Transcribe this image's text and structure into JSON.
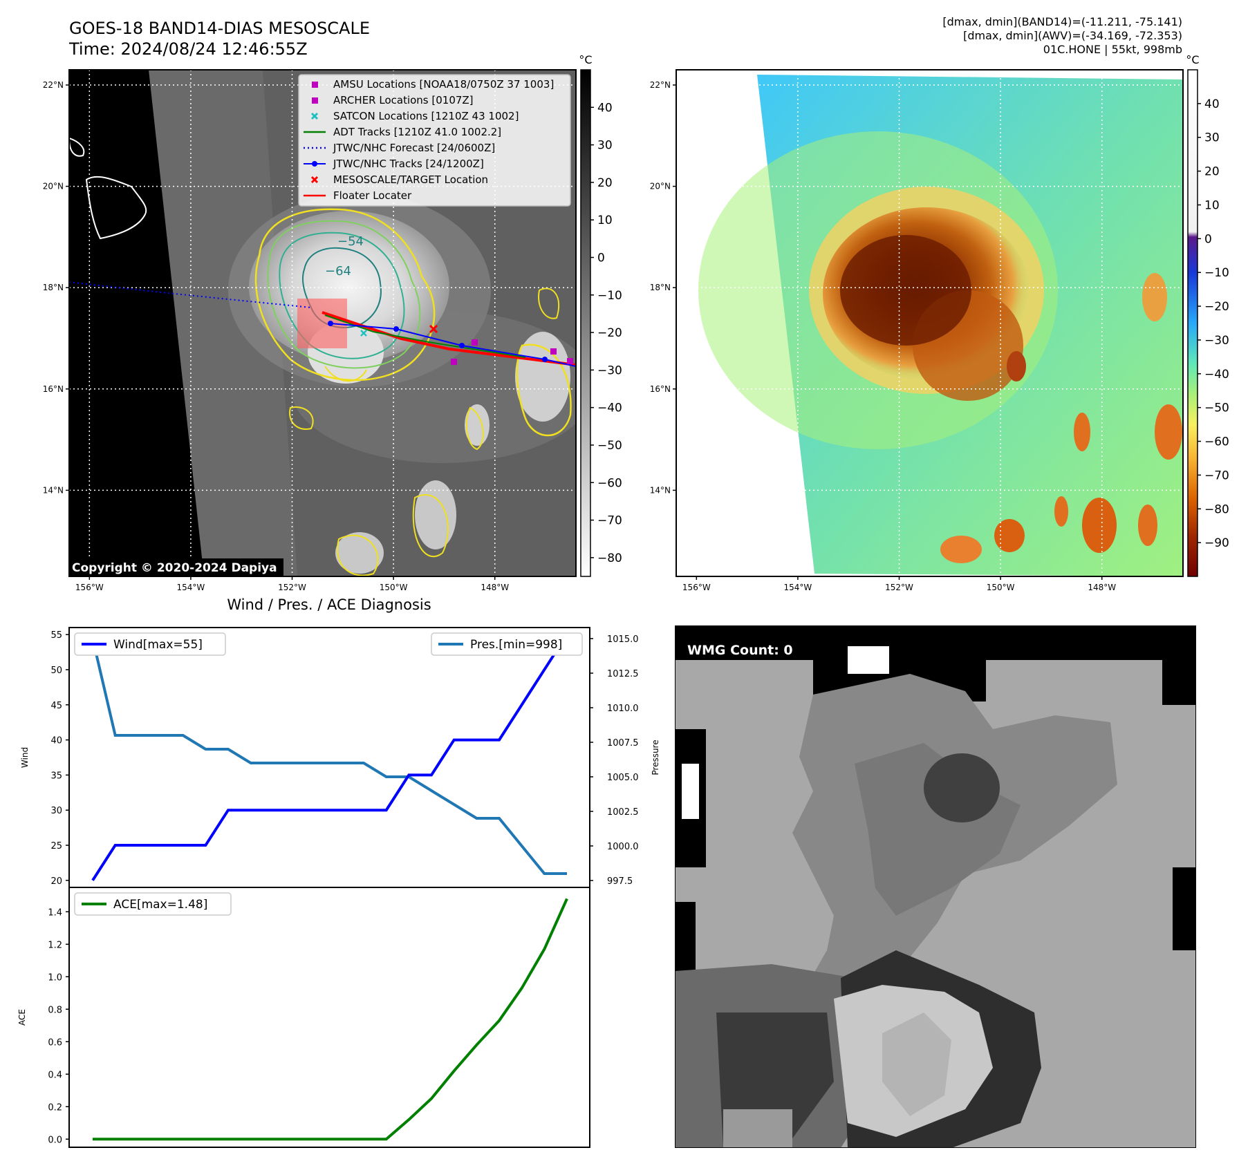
{
  "header": {
    "title_line1": "GOES-18 BAND14-DIAS MESOSCALE",
    "title_line2": "Time: 2024/08/24 12:46:55Z",
    "info_lines": [
      "[dmax, dmin](BAND14)=(-11.211, -75.141)",
      "[dmax, dmin](AWV)=(-34.169, -72.353)",
      "01C.HONE | 55kt, 998mb"
    ]
  },
  "maps": {
    "lat_labels": [
      "22°N",
      "20°N",
      "18°N",
      "16°N",
      "14°N"
    ],
    "lat_values": [
      22,
      20,
      18,
      16,
      14
    ],
    "lon_labels": [
      "156°W",
      "154°W",
      "152°W",
      "150°W",
      "148°W"
    ],
    "lon_values": [
      -156,
      -154,
      -152,
      -150,
      -148
    ],
    "lon_range": [
      -156.4,
      -146.4
    ],
    "lat_range": [
      12.3,
      22.3
    ],
    "copyright": "Copyright © 2020-2024 Dapiya",
    "contour_labels": [
      "−54",
      "−64"
    ]
  },
  "colorbar_gray": {
    "unit": "°C",
    "ticks": [
      "40",
      "30",
      "20",
      "10",
      "0",
      "−10",
      "−20",
      "−30",
      "−40",
      "−50",
      "−60",
      "−70",
      "−80"
    ],
    "range": [
      -85,
      50
    ]
  },
  "colorbar_color": {
    "unit": "°C",
    "ticks": [
      "40",
      "30",
      "20",
      "10",
      "0",
      "−10",
      "−20",
      "−30",
      "−40",
      "−50",
      "−60",
      "−70",
      "−80",
      "−90"
    ],
    "range": [
      -100,
      50
    ]
  },
  "legend": [
    {
      "label": "AMSU Locations [NOAA18/0750Z 37 1003]",
      "marker": "square",
      "color": "#c000c0"
    },
    {
      "label": "ARCHER Locations [0107Z]",
      "marker": "square",
      "color": "#c000c0"
    },
    {
      "label": "SATCON Locations [1210Z 43 1002]",
      "marker": "x",
      "color": "#20c0c0"
    },
    {
      "label": "ADT Tracks [1210Z 41.0 1002.2]",
      "marker": "line",
      "color": "#008000"
    },
    {
      "label": "JTWC/NHC Forecast [24/0600Z]",
      "marker": "dotted",
      "color": "#0000ff"
    },
    {
      "label": "JTWC/NHC Tracks [24/1200Z]",
      "marker": "line-dot",
      "color": "#0000ff"
    },
    {
      "label": "MESOSCALE/TARGET Location",
      "marker": "x",
      "color": "#ff0000"
    },
    {
      "label": "Floater Locater",
      "marker": "line",
      "color": "#ff0000"
    }
  ],
  "chart_data": [
    {
      "type": "line",
      "title": "Wind / Pres. / ACE Diagnosis",
      "x": [
        0,
        1,
        2,
        3,
        4,
        5,
        6,
        7,
        8,
        9,
        10,
        11,
        12,
        13,
        14,
        15,
        16,
        17,
        18,
        19,
        20,
        21
      ],
      "series": [
        {
          "name": "Wind[max=55]",
          "axis": "left",
          "ylabel": "Wind",
          "color": "#0000ff",
          "values": [
            20,
            25,
            25,
            25,
            25,
            25,
            30,
            30,
            30,
            30,
            30,
            30,
            30,
            30,
            35,
            35,
            40,
            40,
            40,
            45,
            50,
            55
          ]
        },
        {
          "name": "Pres.[min=998]",
          "axis": "right",
          "ylabel": "Pressure",
          "color": "#1f77b4",
          "values": [
            1015,
            1008,
            1008,
            1008,
            1008,
            1007,
            1007,
            1006,
            1006,
            1006,
            1006,
            1006,
            1006,
            1005,
            1005,
            1004,
            1003,
            1002,
            1002,
            1000,
            998,
            998
          ]
        }
      ],
      "left_ticks": [
        20,
        25,
        30,
        35,
        40,
        45,
        50,
        55
      ],
      "left_ylim": [
        19,
        56
      ],
      "right_ticks": [
        "997.5",
        "1000.0",
        "1002.5",
        "1005.0",
        "1007.5",
        "1010.0",
        "1012.5",
        "1015.0"
      ],
      "right_ylim": [
        997,
        1015.8
      ],
      "legend_left": "Wind[max=55]",
      "legend_right": "Pres.[min=998]"
    },
    {
      "type": "line",
      "x": [
        0,
        1,
        2,
        3,
        4,
        5,
        6,
        7,
        8,
        9,
        10,
        11,
        12,
        13,
        14,
        15,
        16,
        17,
        18,
        19,
        20,
        21
      ],
      "series": [
        {
          "name": "ACE[max=1.48]",
          "ylabel": "ACE",
          "color": "#008000",
          "values": [
            0,
            0,
            0,
            0,
            0,
            0,
            0,
            0,
            0,
            0,
            0,
            0,
            0,
            0,
            0.12,
            0.25,
            0.42,
            0.58,
            0.73,
            0.93,
            1.17,
            1.48
          ]
        }
      ],
      "ticks": [
        "0.0",
        "0.2",
        "0.4",
        "0.6",
        "0.8",
        "1.0",
        "1.2",
        "1.4"
      ],
      "ylim": [
        -0.05,
        1.55
      ],
      "legend": "ACE[max=1.48]"
    }
  ],
  "wmg": {
    "label": "WMG Count: 0"
  }
}
